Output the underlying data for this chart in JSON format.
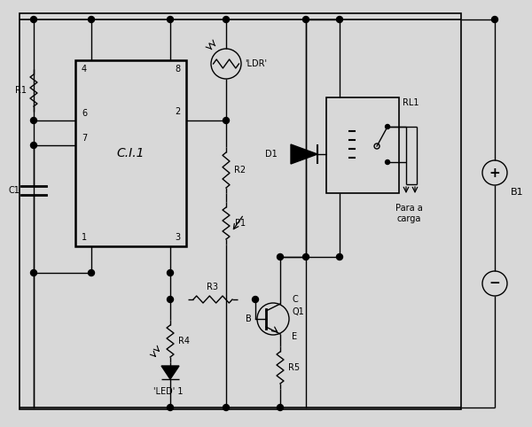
{
  "bg_color": "#d8d8d8",
  "line_color": "#000000",
  "fig_width": 6.0,
  "fig_height": 4.82,
  "ci_label": "C.I.1",
  "ldr_label": "'LDR'",
  "r1_label": "R1",
  "r2_label": "R2",
  "r3_label": "R3",
  "r4_label": "R4",
  "r5_label": "R5",
  "p1_label": "P1",
  "c1_label": "C1",
  "d1_label": "D1",
  "q1_label": "Q1",
  "rl1_label": "RL1",
  "b1_label": "B1",
  "led_label": "'LED' 1",
  "carga_label": "Para a\ncarga"
}
